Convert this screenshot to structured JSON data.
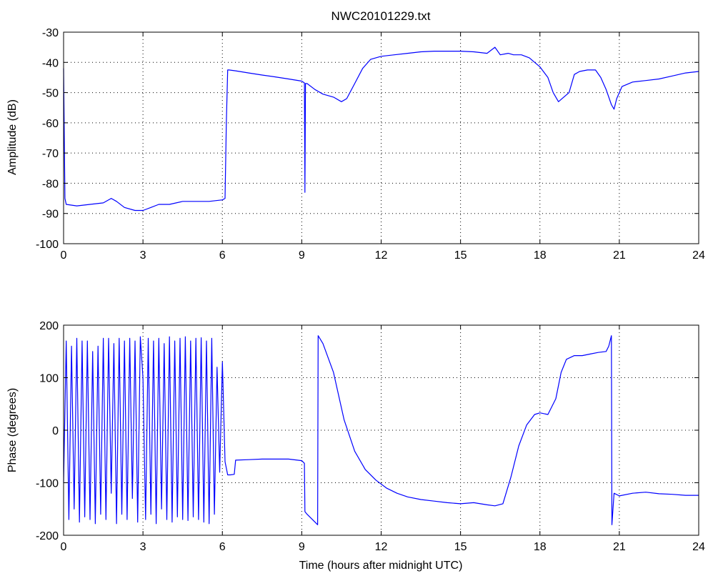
{
  "figure": {
    "title": "NWC20101229.txt",
    "line_color": "#0000ff",
    "grid_color": "#000000",
    "background": "#ffffff"
  },
  "chart_data": [
    {
      "type": "line",
      "title": "NWC20101229.txt",
      "xlabel": "",
      "ylabel": "Amplitude (dB)",
      "xlim": [
        0,
        24
      ],
      "ylim": [
        -100,
        -30
      ],
      "xticks": [
        0,
        3,
        6,
        9,
        12,
        15,
        18,
        21,
        24
      ],
      "yticks": [
        -100,
        -90,
        -80,
        -70,
        -60,
        -50,
        -40,
        -30
      ],
      "grid": true,
      "series": [
        {
          "color": "#0000ff",
          "x": [
            0,
            0.05,
            0.1,
            0.5,
            1.0,
            1.5,
            1.8,
            2.0,
            2.3,
            2.7,
            3.0,
            3.3,
            3.6,
            4.0,
            4.5,
            5.0,
            5.5,
            6.0,
            6.1,
            6.15,
            6.2,
            6.25,
            6.5,
            7.0,
            7.5,
            8.0,
            8.5,
            9.0,
            9.1,
            9.12,
            9.14,
            9.2,
            9.5,
            9.8,
            10.2,
            10.5,
            10.7,
            11.0,
            11.3,
            11.6,
            12.0,
            12.5,
            13.0,
            13.5,
            14.0,
            14.5,
            15.0,
            15.5,
            16.0,
            16.3,
            16.5,
            16.8,
            17.0,
            17.3,
            17.6,
            18.0,
            18.3,
            18.5,
            18.7,
            18.9,
            19.1,
            19.3,
            19.5,
            19.8,
            20.1,
            20.3,
            20.5,
            20.7,
            20.8,
            20.9,
            21.1,
            21.5,
            22.0,
            22.5,
            23.0,
            23.5,
            24.0
          ],
          "y": [
            -42,
            -85,
            -87,
            -87.5,
            -87,
            -86.5,
            -85,
            -86,
            -88,
            -89,
            -89,
            -88,
            -87,
            -87,
            -86,
            -86,
            -86,
            -85.5,
            -85,
            -60,
            -42.5,
            -42.5,
            -42.8,
            -43.5,
            -44.2,
            -44.8,
            -45.5,
            -46.2,
            -46.8,
            -83,
            -47,
            -47,
            -49,
            -50.5,
            -51.5,
            -53,
            -52,
            -47,
            -42,
            -39,
            -38,
            -37.5,
            -37,
            -36.5,
            -36.3,
            -36.3,
            -36.3,
            -36.5,
            -37,
            -35,
            -37.5,
            -37,
            -37.5,
            -37.5,
            -38.5,
            -41.5,
            -45,
            -50,
            -53,
            -51.5,
            -50,
            -44,
            -43,
            -42.5,
            -42.5,
            -45,
            -49,
            -54,
            -55.5,
            -52,
            -48,
            -46.5,
            -46,
            -45.5,
            -44.5,
            -43.5,
            -43
          ]
        }
      ]
    },
    {
      "type": "line",
      "title": "",
      "xlabel": "Time (hours after midnight UTC)",
      "ylabel": "Phase (degrees)",
      "xlim": [
        0,
        24
      ],
      "ylim": [
        -200,
        200
      ],
      "xticks": [
        0,
        3,
        6,
        9,
        12,
        15,
        18,
        21,
        24
      ],
      "yticks": [
        -200,
        -100,
        0,
        100,
        200
      ],
      "grid": true,
      "series": [
        {
          "color": "#0000ff",
          "x": [
            0,
            0.1,
            0.2,
            0.3,
            0.4,
            0.5,
            0.6,
            0.7,
            0.8,
            0.9,
            1.0,
            1.1,
            1.2,
            1.3,
            1.4,
            1.5,
            1.6,
            1.7,
            1.8,
            1.9,
            2.0,
            2.1,
            2.2,
            2.3,
            2.4,
            2.5,
            2.6,
            2.7,
            2.8,
            2.9,
            3.0,
            3.1,
            3.2,
            3.3,
            3.4,
            3.5,
            3.6,
            3.7,
            3.8,
            3.9,
            4.0,
            4.1,
            4.2,
            4.3,
            4.4,
            4.5,
            4.6,
            4.7,
            4.8,
            4.9,
            5.0,
            5.1,
            5.2,
            5.3,
            5.4,
            5.5,
            5.6,
            5.7,
            5.8,
            5.9,
            6.0,
            6.1,
            6.2,
            6.3,
            6.45,
            6.5,
            7.0,
            7.5,
            8.0,
            8.5,
            9.0,
            9.1,
            9.12,
            9.2,
            9.5,
            9.6,
            9.62,
            9.8,
            10.2,
            10.6,
            11.0,
            11.4,
            11.8,
            12.2,
            12.6,
            13.0,
            13.5,
            14.0,
            14.5,
            15.0,
            15.5,
            16.0,
            16.3,
            16.6,
            16.9,
            17.2,
            17.5,
            17.8,
            18.0,
            18.3,
            18.6,
            18.8,
            19.0,
            19.3,
            19.6,
            19.9,
            20.2,
            20.5,
            20.6,
            20.7,
            20.72,
            20.8,
            21.0,
            21.5,
            22.0,
            22.5,
            23.0,
            23.5,
            24.0
          ],
          "y": [
            -100,
            170,
            -170,
            160,
            -150,
            175,
            -175,
            170,
            -165,
            170,
            -170,
            150,
            -178,
            160,
            -160,
            175,
            -170,
            175,
            -120,
            165,
            -178,
            175,
            -160,
            170,
            -170,
            175,
            -130,
            170,
            -175,
            178,
            100,
            -170,
            175,
            -160,
            170,
            -178,
            175,
            -150,
            165,
            -170,
            178,
            -175,
            170,
            -165,
            175,
            -170,
            178,
            -172,
            170,
            -165,
            175,
            -170,
            176,
            -175,
            170,
            -178,
            175,
            -160,
            120,
            -80,
            130,
            -60,
            -85,
            -85,
            -84,
            -57,
            -56,
            -55,
            -55,
            -55,
            -58,
            -63,
            -155,
            -160,
            -175,
            -180,
            180,
            165,
            110,
            20,
            -40,
            -75,
            -95,
            -110,
            -120,
            -127,
            -132,
            -135,
            -138,
            -140,
            -138,
            -142,
            -144,
            -140,
            -90,
            -30,
            10,
            30,
            33,
            30,
            60,
            110,
            135,
            142,
            142,
            145,
            148,
            150,
            160,
            180,
            -180,
            -120,
            -125,
            -120,
            -118,
            -121,
            -122,
            -124,
            -124
          ]
        }
      ]
    }
  ]
}
